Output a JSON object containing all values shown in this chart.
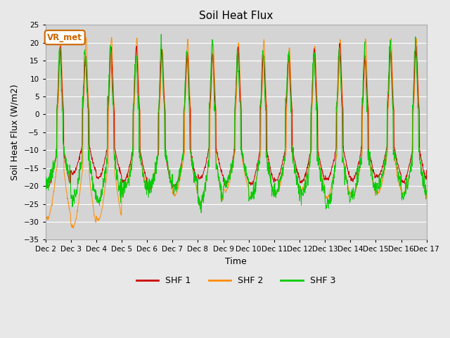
{
  "title": "Soil Heat Flux",
  "xlabel": "Time",
  "ylabel": "Soil Heat Flux (W/m2)",
  "ylim": [
    -35,
    25
  ],
  "yticks": [
    -35,
    -30,
    -25,
    -20,
    -15,
    -10,
    -5,
    0,
    5,
    10,
    15,
    20,
    25
  ],
  "xtick_labels": [
    "Dec 2",
    "Dec 3",
    "Dec 4",
    "Dec 5",
    "Dec 6",
    "Dec 7",
    "Dec 8",
    "Dec 9",
    "Dec 10",
    "Dec 11",
    "Dec 12",
    "Dec 13",
    "Dec 14",
    "Dec 15",
    "Dec 16",
    "Dec 17"
  ],
  "colors": {
    "SHF 1": "#cc0000",
    "SHF 2": "#ff8c00",
    "SHF 3": "#00cc00"
  },
  "legend_labels": [
    "SHF 1",
    "SHF 2",
    "SHF 3"
  ],
  "annotation_text": "VR_met",
  "annotation_color": "#cc6600",
  "background_color": "#e8e8e8",
  "plot_bg_color": "#d4d4d4",
  "grid_color": "#ffffff",
  "n_days": 15,
  "points_per_day": 96
}
